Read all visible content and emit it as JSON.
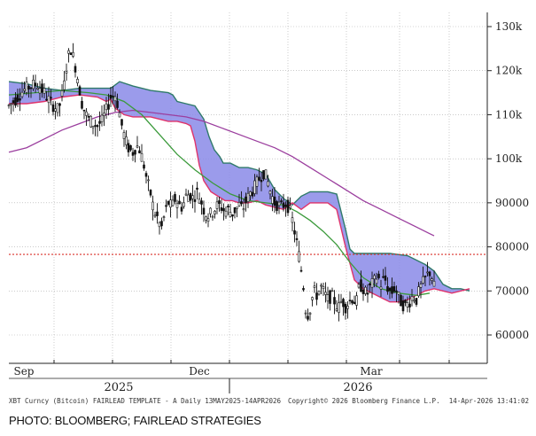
{
  "chart_data": {
    "type": "candlestick",
    "x_ticks": [
      "Sep",
      "Dec",
      "Mar"
    ],
    "year_labels": [
      "2025",
      "2026"
    ],
    "y_ticks": [
      "130k",
      "120k",
      "110k",
      "100k",
      "90000",
      "80000",
      "70000",
      "60000"
    ],
    "y_tick_values": [
      130000,
      120000,
      110000,
      100000,
      90000,
      80000,
      70000,
      60000
    ],
    "ylim": [
      54000,
      133000
    ],
    "reference_line": {
      "value": 78300,
      "color": "#d9322b",
      "style": "dotted"
    },
    "price_path": [
      [
        0,
        112000
      ],
      [
        8,
        113500
      ],
      [
        16,
        115500
      ],
      [
        24,
        116500
      ],
      [
        32,
        117000
      ],
      [
        40,
        115000
      ],
      [
        48,
        112500
      ],
      [
        56,
        111000
      ],
      [
        62,
        116000
      ],
      [
        66,
        122500
      ],
      [
        70,
        125000
      ],
      [
        74,
        122000
      ],
      [
        78,
        118000
      ],
      [
        82,
        113000
      ],
      [
        86,
        110500
      ],
      [
        90,
        109000
      ],
      [
        95,
        108000
      ],
      [
        100,
        107500
      ],
      [
        105,
        108500
      ],
      [
        110,
        111000
      ],
      [
        115,
        114000
      ],
      [
        120,
        114500
      ],
      [
        124,
        111500
      ],
      [
        128,
        107000
      ],
      [
        132,
        104000
      ],
      [
        136,
        102000
      ],
      [
        140,
        101500
      ],
      [
        144,
        103000
      ],
      [
        148,
        102000
      ],
      [
        152,
        99000
      ],
      [
        156,
        95000
      ],
      [
        160,
        92000
      ],
      [
        164,
        88000
      ],
      [
        168,
        86500
      ],
      [
        172,
        84000
      ],
      [
        176,
        87500
      ],
      [
        180,
        90000
      ],
      [
        184,
        89000
      ],
      [
        188,
        91000
      ],
      [
        192,
        89500
      ],
      [
        196,
        89000
      ],
      [
        200,
        91500
      ],
      [
        204,
        92000
      ],
      [
        208,
        91000
      ],
      [
        212,
        92500
      ],
      [
        216,
        91000
      ],
      [
        220,
        88500
      ],
      [
        224,
        87000
      ],
      [
        228,
        87500
      ],
      [
        232,
        88500
      ],
      [
        236,
        89500
      ],
      [
        240,
        89000
      ],
      [
        244,
        88000
      ],
      [
        248,
        88500
      ],
      [
        252,
        87500
      ],
      [
        256,
        88500
      ],
      [
        260,
        89500
      ],
      [
        264,
        88500
      ],
      [
        268,
        90500
      ],
      [
        272,
        92000
      ],
      [
        276,
        93000
      ],
      [
        280,
        94500
      ],
      [
        284,
        96000
      ],
      [
        288,
        97000
      ],
      [
        292,
        95000
      ],
      [
        296,
        92000
      ],
      [
        300,
        90000
      ],
      [
        304,
        89500
      ],
      [
        308,
        89000
      ],
      [
        312,
        90000
      ],
      [
        316,
        89000
      ],
      [
        320,
        86000
      ],
      [
        324,
        82000
      ],
      [
        328,
        77500
      ],
      [
        332,
        72000
      ],
      [
        336,
        64000
      ],
      [
        340,
        66000
      ],
      [
        344,
        70000
      ],
      [
        348,
        69000
      ],
      [
        352,
        71000
      ],
      [
        356,
        69500
      ],
      [
        360,
        68000
      ],
      [
        364,
        69000
      ],
      [
        368,
        67500
      ],
      [
        372,
        66000
      ],
      [
        376,
        68000
      ],
      [
        380,
        66500
      ],
      [
        384,
        67500
      ],
      [
        388,
        68500
      ],
      [
        392,
        67000
      ],
      [
        396,
        71500
      ],
      [
        400,
        70500
      ],
      [
        404,
        69000
      ],
      [
        408,
        71000
      ],
      [
        412,
        72000
      ],
      [
        416,
        73500
      ],
      [
        420,
        71500
      ],
      [
        424,
        73000
      ],
      [
        428,
        70500
      ],
      [
        432,
        69500
      ],
      [
        436,
        71000
      ],
      [
        440,
        68500
      ],
      [
        444,
        67000
      ],
      [
        448,
        66500
      ],
      [
        452,
        67500
      ],
      [
        456,
        69000
      ],
      [
        460,
        68000
      ],
      [
        464,
        70500
      ],
      [
        468,
        72000
      ],
      [
        472,
        73500
      ],
      [
        476,
        74500
      ],
      [
        480,
        71000
      ]
    ],
    "moving_average_short": [
      [
        0,
        114500
      ],
      [
        30,
        115000
      ],
      [
        60,
        115500
      ],
      [
        90,
        115000
      ],
      [
        110,
        114500
      ],
      [
        130,
        113000
      ],
      [
        150,
        110000
      ],
      [
        170,
        105500
      ],
      [
        190,
        101000
      ],
      [
        210,
        97500
      ],
      [
        230,
        94500
      ],
      [
        250,
        92000
      ],
      [
        270,
        90500
      ],
      [
        290,
        90000
      ],
      [
        310,
        89500
      ],
      [
        325,
        88000
      ],
      [
        340,
        86000
      ],
      [
        355,
        83500
      ],
      [
        370,
        80500
      ],
      [
        385,
        76500
      ],
      [
        400,
        73000
      ],
      [
        420,
        70500
      ],
      [
        440,
        69500
      ],
      [
        460,
        69000
      ],
      [
        475,
        69500
      ]
    ],
    "moving_average_long": [
      [
        0,
        101500
      ],
      [
        20,
        102500
      ],
      [
        40,
        104500
      ],
      [
        60,
        106500
      ],
      [
        80,
        108000
      ],
      [
        100,
        109500
      ],
      [
        120,
        110500
      ],
      [
        140,
        111000
      ],
      [
        160,
        110500
      ],
      [
        180,
        110000
      ],
      [
        200,
        109500
      ],
      [
        220,
        108500
      ],
      [
        240,
        107000
      ],
      [
        260,
        105500
      ],
      [
        280,
        104000
      ],
      [
        300,
        102500
      ],
      [
        320,
        100500
      ],
      [
        340,
        98000
      ],
      [
        360,
        95500
      ],
      [
        380,
        93000
      ],
      [
        400,
        90500
      ],
      [
        420,
        88500
      ],
      [
        440,
        86500
      ],
      [
        460,
        84500
      ],
      [
        475,
        83000
      ],
      [
        480,
        82500
      ]
    ],
    "cloud_upper": [
      [
        0,
        117500
      ],
      [
        20,
        117000
      ],
      [
        40,
        116000
      ],
      [
        60,
        115500
      ],
      [
        80,
        116000
      ],
      [
        100,
        116000
      ],
      [
        115,
        116000
      ],
      [
        125,
        117500
      ],
      [
        140,
        116500
      ],
      [
        160,
        115500
      ],
      [
        180,
        115000
      ],
      [
        185,
        114500
      ],
      [
        190,
        113000
      ],
      [
        200,
        112500
      ],
      [
        210,
        112000
      ],
      [
        220,
        109000
      ],
      [
        226,
        105000
      ],
      [
        232,
        102000
      ],
      [
        238,
        100500
      ],
      [
        242,
        99000
      ],
      [
        250,
        99000
      ],
      [
        260,
        98000
      ],
      [
        270,
        98000
      ],
      [
        280,
        97500
      ],
      [
        290,
        96500
      ],
      [
        300,
        93000
      ],
      [
        310,
        91000
      ],
      [
        320,
        89500
      ],
      [
        330,
        91500
      ],
      [
        340,
        92500
      ],
      [
        350,
        92500
      ],
      [
        360,
        92500
      ],
      [
        370,
        92000
      ],
      [
        380,
        84000
      ],
      [
        385,
        79500
      ],
      [
        390,
        78500
      ],
      [
        410,
        78500
      ],
      [
        430,
        78500
      ],
      [
        450,
        78000
      ],
      [
        470,
        76000
      ],
      [
        480,
        74500
      ],
      [
        490,
        71500
      ],
      [
        500,
        70500
      ],
      [
        510,
        70500
      ],
      [
        520,
        70000
      ]
    ],
    "cloud_lower": [
      [
        0,
        112500
      ],
      [
        20,
        112500
      ],
      [
        40,
        113000
      ],
      [
        60,
        114000
      ],
      [
        80,
        114500
      ],
      [
        100,
        114000
      ],
      [
        110,
        113000
      ],
      [
        115,
        113500
      ],
      [
        120,
        111500
      ],
      [
        130,
        110000
      ],
      [
        140,
        109500
      ],
      [
        150,
        109500
      ],
      [
        160,
        109500
      ],
      [
        170,
        109000
      ],
      [
        180,
        108500
      ],
      [
        190,
        108500
      ],
      [
        200,
        108000
      ],
      [
        205,
        107500
      ],
      [
        210,
        104000
      ],
      [
        215,
        98500
      ],
      [
        220,
        95000
      ],
      [
        228,
        92500
      ],
      [
        236,
        91500
      ],
      [
        244,
        90500
      ],
      [
        252,
        90500
      ],
      [
        260,
        90000
      ],
      [
        270,
        90000
      ],
      [
        280,
        90500
      ],
      [
        290,
        89500
      ],
      [
        300,
        89000
      ],
      [
        310,
        88500
      ],
      [
        320,
        90000
      ],
      [
        330,
        88500
      ],
      [
        340,
        90000
      ],
      [
        350,
        90000
      ],
      [
        360,
        90000
      ],
      [
        370,
        88500
      ],
      [
        380,
        80000
      ],
      [
        390,
        72500
      ],
      [
        400,
        70500
      ],
      [
        410,
        69500
      ],
      [
        420,
        68500
      ],
      [
        430,
        67500
      ],
      [
        440,
        67500
      ],
      [
        450,
        68000
      ],
      [
        460,
        69000
      ],
      [
        470,
        70000
      ],
      [
        480,
        70500
      ],
      [
        490,
        70000
      ],
      [
        500,
        69500
      ],
      [
        510,
        70000
      ],
      [
        520,
        70500
      ]
    ],
    "colors": {
      "price": "#111111",
      "moving_average_short": "#3b9a3b",
      "moving_average_long": "#9b3e9e",
      "cloud_upper": "#2f7a6a",
      "cloud_lower": "#e0336b",
      "cloud_fill": "#8a8ae8",
      "grid": "#aaaaaa"
    },
    "footer": {
      "left": "XBT Curncy (Bitcoin) FAIRLEAD TEMPLATE - A Daily 13MAY2025-14APR2026",
      "middle": "Copyright© 2026 Bloomberg Finance L.P.",
      "right": "14-Apr-2026 13:41:02"
    }
  },
  "credit": "PHOTO: BLOOMBERG; FAIRLEAD STRATEGIES"
}
